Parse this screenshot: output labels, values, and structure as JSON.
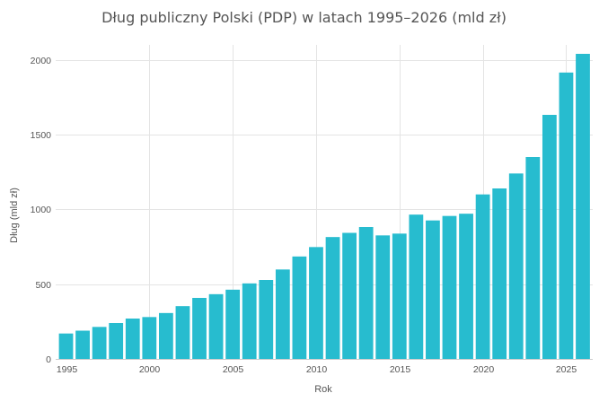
{
  "chart_data": {
    "type": "bar",
    "title": "Dług publiczny Polski (PDP) w latach 1995–2026 (mld zł)",
    "xlabel": "Rok",
    "ylabel": "Dług (mld zł)",
    "categories": [
      1995,
      1996,
      1997,
      1998,
      1999,
      2000,
      2001,
      2002,
      2003,
      2004,
      2005,
      2006,
      2007,
      2008,
      2009,
      2010,
      2011,
      2012,
      2013,
      2014,
      2015,
      2016,
      2017,
      2018,
      2019,
      2020,
      2021,
      2022,
      2023,
      2024,
      2025,
      2026
    ],
    "values": [
      170,
      189,
      214,
      240,
      270,
      280,
      307,
      353,
      408,
      433,
      463,
      505,
      528,
      598,
      685,
      748,
      815,
      843,
      882,
      826,
      838,
      965,
      926,
      956,
      971,
      1100,
      1140,
      1240,
      1350,
      1632,
      1915,
      2040
    ],
    "xlim": [
      1995,
      2026
    ],
    "ylim": [
      0,
      2100
    ],
    "x_ticks": [
      1995,
      2000,
      2005,
      2010,
      2015,
      2020,
      2025
    ],
    "y_ticks": [
      0,
      500,
      1000,
      1500,
      2000
    ],
    "grid": true,
    "legend": "none",
    "colors": {
      "bar": "#27bccf"
    }
  }
}
